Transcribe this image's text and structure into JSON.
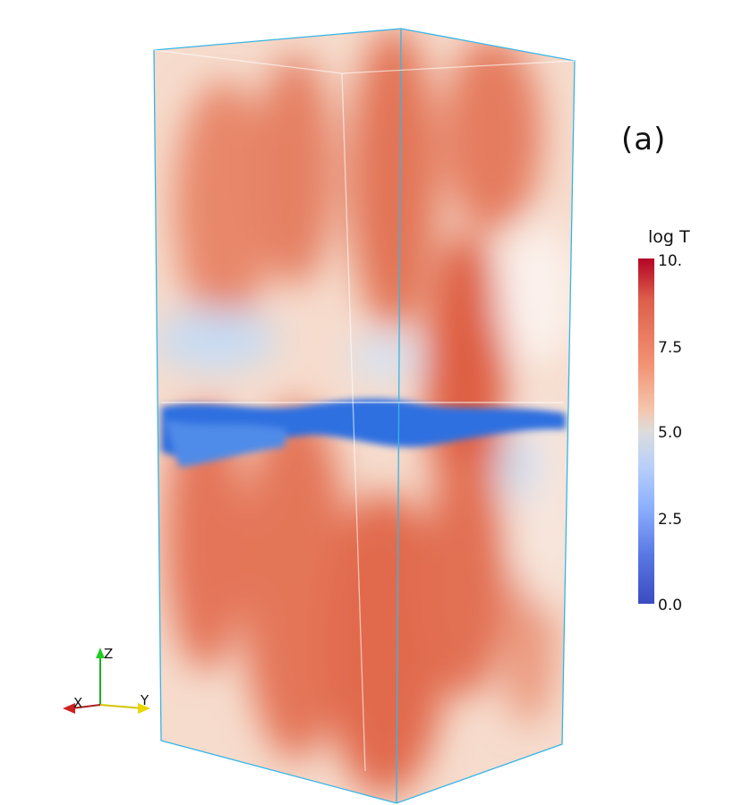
{
  "panel_label": "(a)",
  "colorbar": {
    "title": "log T",
    "ticks": [
      "10.",
      "7.5",
      "5.0",
      "2.5",
      "0.0"
    ],
    "colormap": "cool-warm",
    "colors": {
      "max": "#b40426",
      "mid": "#dddcdc",
      "min": "#3b4cc0"
    }
  },
  "axes": {
    "x": "X",
    "y": "Y",
    "z": "Z"
  },
  "colors": {
    "box_edge": "#35b5e8",
    "warm": "#e0694a",
    "cold": "#2f6fe0"
  }
}
